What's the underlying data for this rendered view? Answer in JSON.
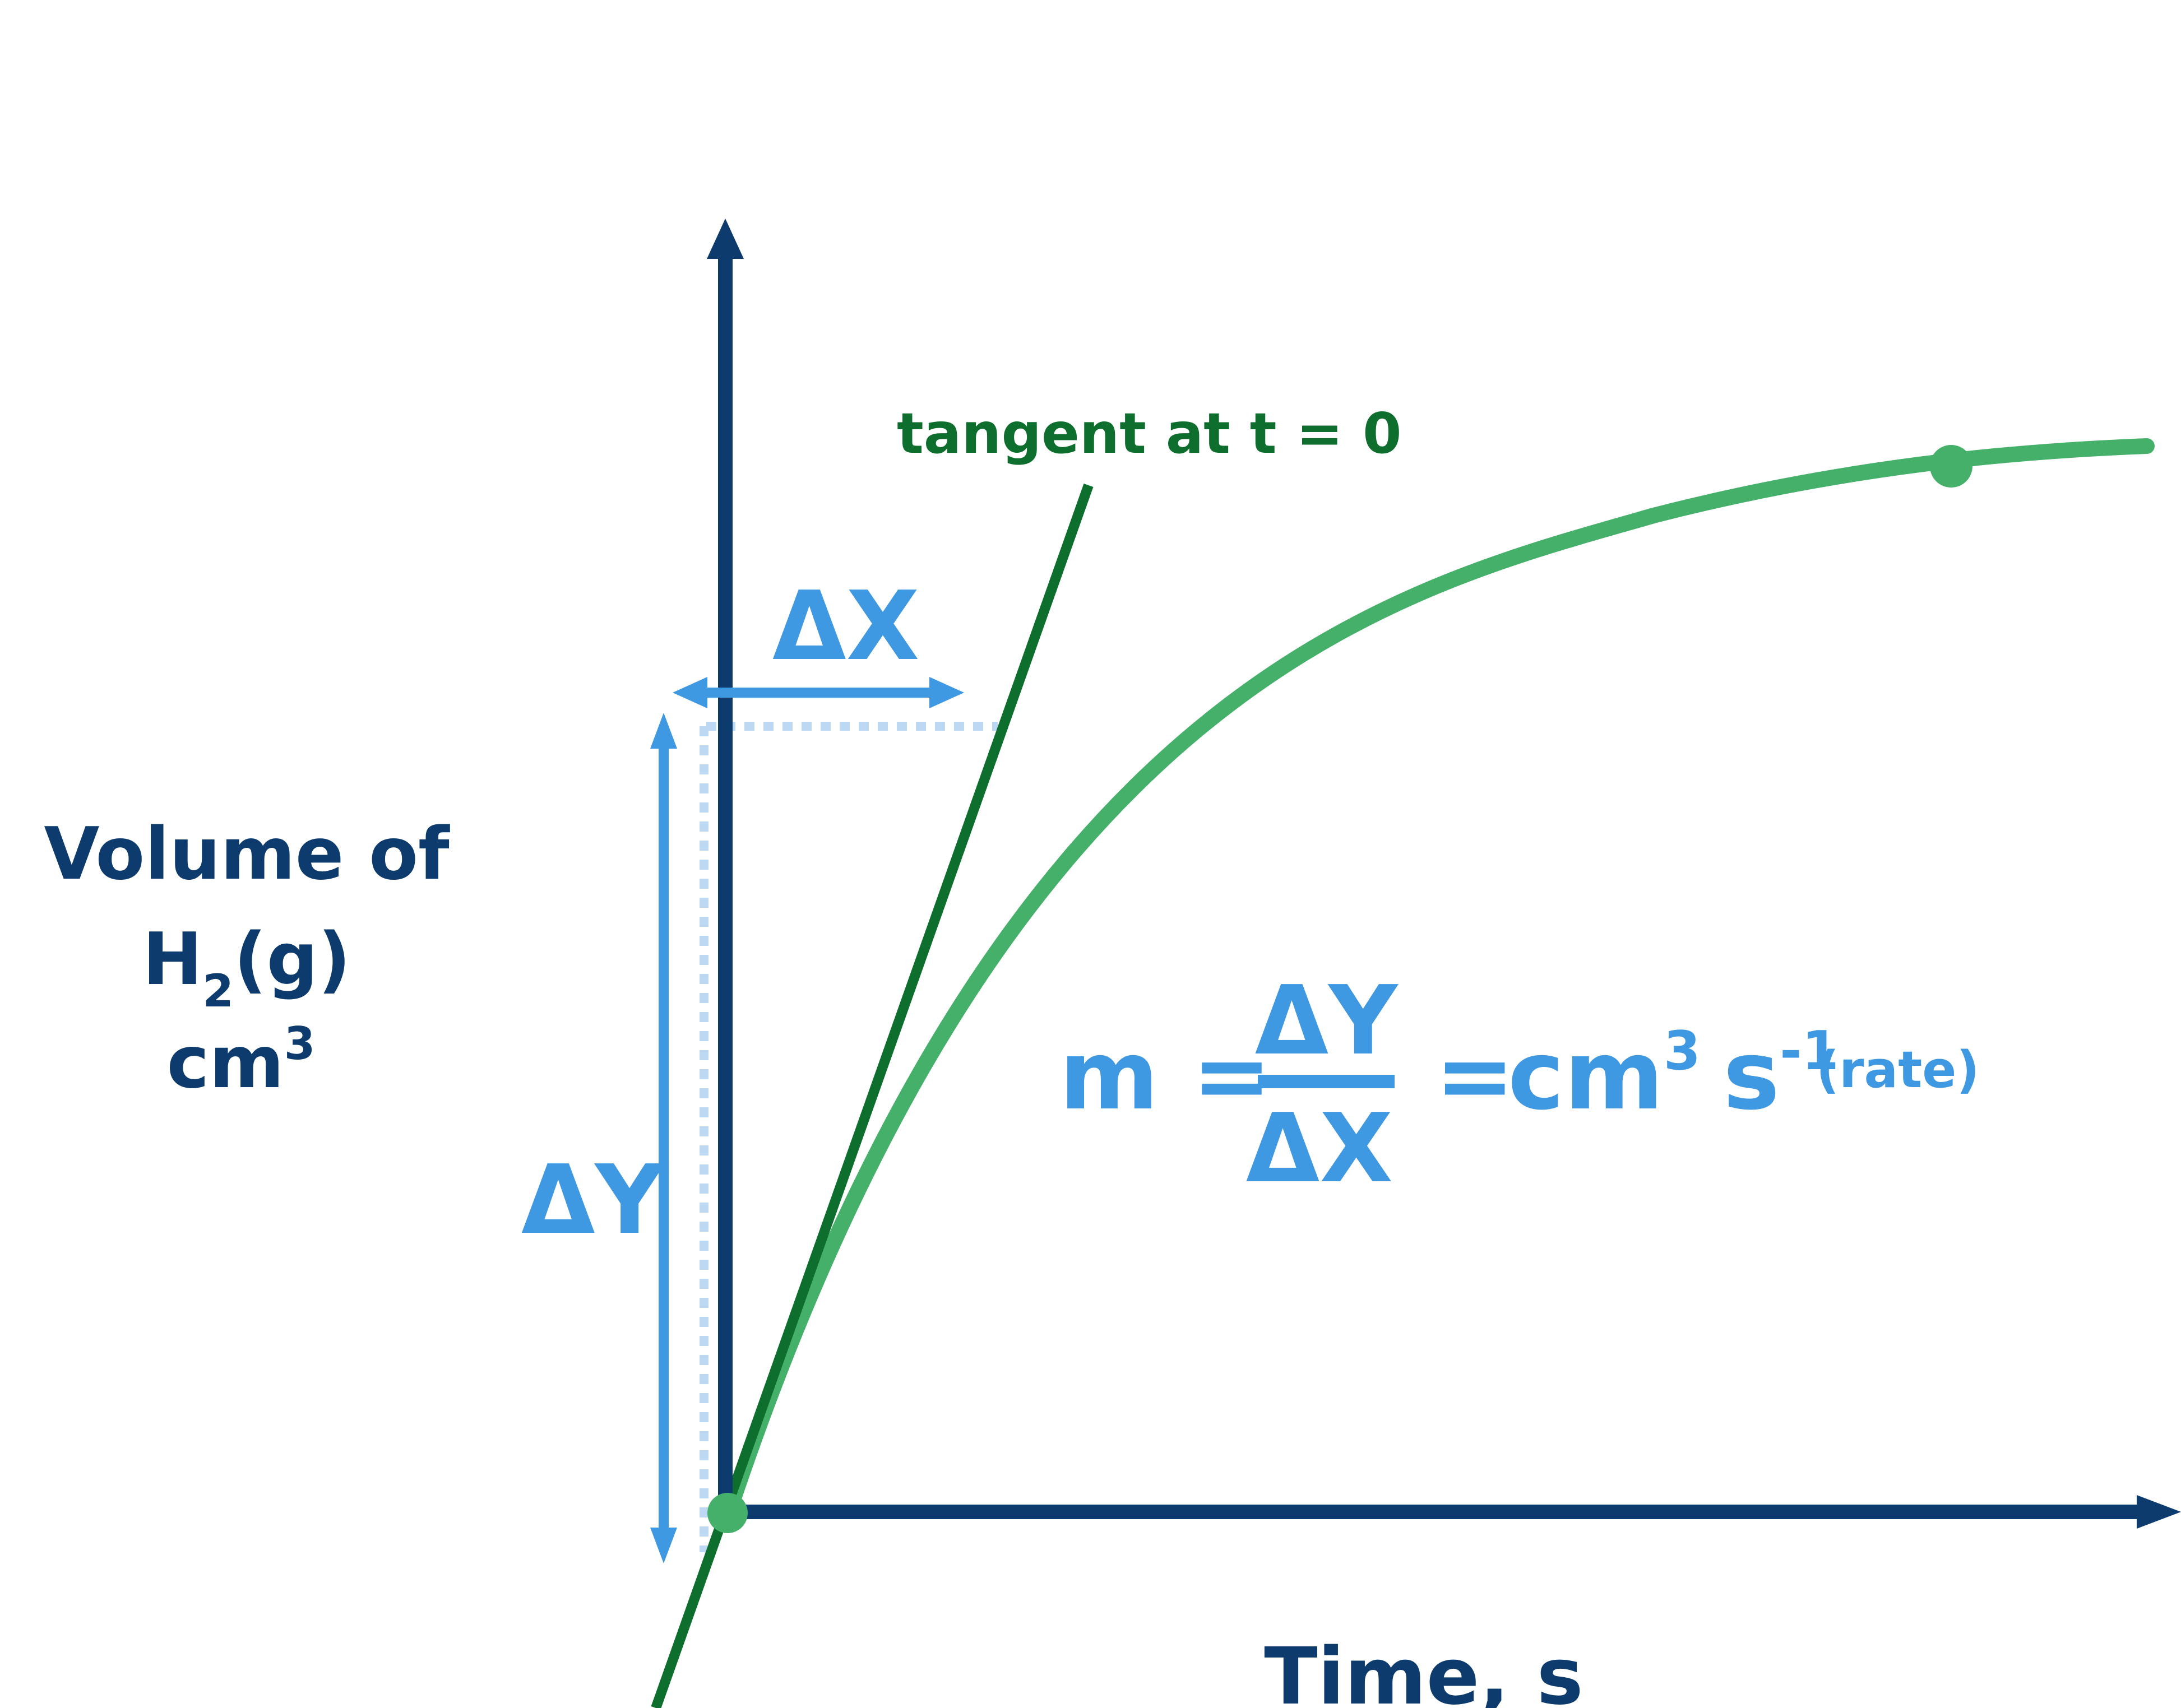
{
  "colors": {
    "axis": "#0d3b6e",
    "curve": "#45b06a",
    "tangent": "#0e6e2e",
    "delta": "#3f98e2",
    "dotted": "#bcd8f3"
  },
  "labels": {
    "tangent": "tangent at t = 0",
    "delta_x": "ΔX",
    "delta_y": "ΔY",
    "y_axis_line1": "Volume of",
    "y_axis_h": "H",
    "y_axis_h_sub": "2",
    "y_axis_g": "(g)",
    "y_axis_unit": "cm",
    "y_axis_unit_sup": "3",
    "x_axis": "Time, s"
  },
  "formula": {
    "lhs": "m =",
    "numerator": "ΔY",
    "denominator": "ΔX",
    "equals": "=",
    "unit_cm": "cm",
    "unit_cm_sup": "3",
    "unit_s": "s",
    "unit_s_sup": "-1",
    "note": "(rate)"
  }
}
